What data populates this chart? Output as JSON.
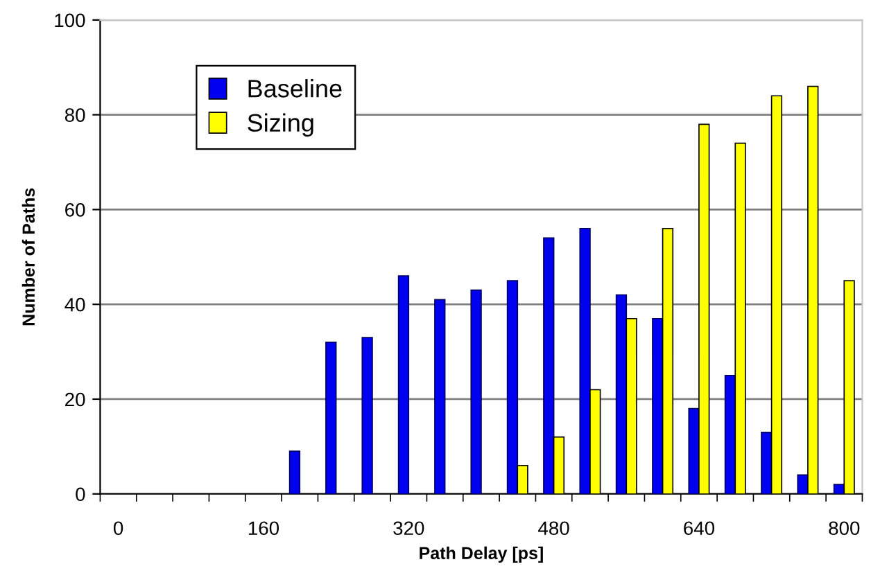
{
  "chart_data": {
    "type": "bar",
    "xlabel": "Path Delay [ps]",
    "ylabel": "Number of Paths",
    "categories": [
      "0",
      null,
      null,
      null,
      "160",
      null,
      null,
      null,
      "320",
      null,
      null,
      null,
      "480",
      null,
      null,
      null,
      "640",
      null,
      null,
      null,
      "800"
    ],
    "series": [
      {
        "name": "Baseline",
        "color": "#0000f0",
        "values": [
          0,
          0,
          0,
          0,
          0,
          9,
          32,
          33,
          46,
          41,
          43,
          45,
          54,
          56,
          42,
          37,
          18,
          25,
          13,
          4,
          2
        ]
      },
      {
        "name": "Sizing",
        "color": "#ffff00",
        "values": [
          0,
          0,
          0,
          0,
          0,
          0,
          0,
          0,
          0,
          0,
          0,
          6,
          12,
          22,
          37,
          56,
          78,
          74,
          84,
          86,
          45
        ]
      }
    ],
    "ylim": [
      0,
      100
    ],
    "yticks": [
      0,
      20,
      40,
      60,
      80,
      100
    ],
    "grid": "y",
    "legend": "top left"
  }
}
